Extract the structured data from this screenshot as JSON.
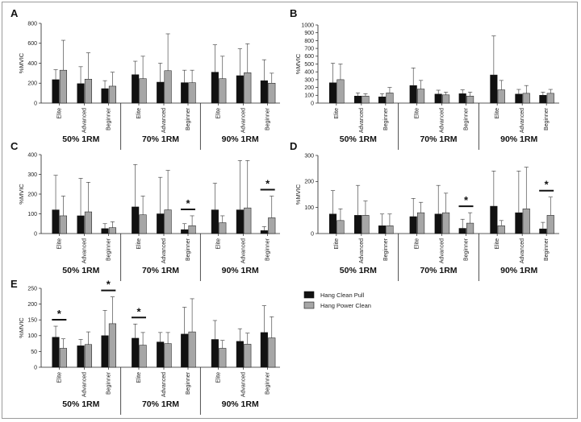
{
  "chart_data": [
    {
      "panel": "A",
      "type": "bar",
      "ylabel": "%MVIC",
      "ylim": [
        0,
        800
      ],
      "yticks": [
        0,
        200,
        400,
        600,
        800
      ],
      "groups": [
        "50% 1RM",
        "70% 1RM",
        "90% 1RM"
      ],
      "categories": [
        "Elite",
        "Advanced",
        "Beginner"
      ],
      "series": [
        {
          "name": "Hang Clean Pull",
          "values": [
            [
              235,
              195,
              145
            ],
            [
              285,
              210,
              205
            ],
            [
              310,
              275,
              225
            ]
          ],
          "errors": [
            [
              100,
              170,
              80
            ],
            [
              135,
              190,
              125
            ],
            [
              275,
              270,
              210
            ]
          ]
        },
        {
          "name": "Hang Power Clean",
          "values": [
            [
              330,
              240,
              170
            ],
            [
              245,
              325,
              205
            ],
            [
              245,
              305,
              200
            ]
          ],
          "errors": [
            [
              300,
              265,
              140
            ],
            [
              225,
              370,
              125
            ],
            [
              225,
              290,
              100
            ]
          ]
        }
      ],
      "significance": []
    },
    {
      "panel": "B",
      "type": "bar",
      "ylabel": "%MVIC",
      "ylim": [
        0,
        1000
      ],
      "yticks": [
        0,
        100,
        200,
        300,
        400,
        500,
        600,
        700,
        800,
        900,
        1000
      ],
      "groups": [
        "50% 1RM",
        "70% 1RM",
        "90% 1RM"
      ],
      "categories": [
        "Elite",
        "Advanced",
        "Beginner"
      ],
      "series": [
        {
          "name": "Hang Clean Pull",
          "values": [
            [
              260,
              90,
              80
            ],
            [
              225,
              115,
              120
            ],
            [
              360,
              115,
              100
            ]
          ],
          "errors": [
            [
              250,
              40,
              40
            ],
            [
              225,
              50,
              50
            ],
            [
              500,
              60,
              40
            ]
          ]
        },
        {
          "name": "Hang Power Clean",
          "values": [
            [
              300,
              90,
              130
            ],
            [
              180,
              105,
              90
            ],
            [
              170,
              125,
              125
            ]
          ],
          "errors": [
            [
              200,
              30,
              70
            ],
            [
              110,
              35,
              50
            ],
            [
              120,
              100,
              50
            ]
          ]
        }
      ],
      "significance": []
    },
    {
      "panel": "C",
      "type": "bar",
      "ylabel": "%MVIC",
      "ylim": [
        0,
        400
      ],
      "yticks": [
        0,
        100,
        200,
        300,
        400
      ],
      "groups": [
        "50% 1RM",
        "70% 1RM",
        "90% 1RM"
      ],
      "categories": [
        "Elite",
        "Advanced",
        "Beginner"
      ],
      "series": [
        {
          "name": "Hang Clean Pull",
          "values": [
            [
              120,
              90,
              25
            ],
            [
              135,
              100,
              20
            ],
            [
              120,
              120,
              15
            ]
          ],
          "errors": [
            [
              175,
              190,
              25
            ],
            [
              215,
              185,
              30
            ],
            [
              135,
              250,
              20
            ]
          ]
        },
        {
          "name": "Hang Power Clean",
          "values": [
            [
              90,
              110,
              30
            ],
            [
              95,
              120,
              40
            ],
            [
              55,
              130,
              80
            ]
          ],
          "errors": [
            [
              100,
              150,
              30
            ],
            [
              95,
              200,
              50
            ],
            [
              35,
              240,
              110
            ]
          ]
        }
      ],
      "significance": [
        {
          "group": 1,
          "category": 2,
          "label": "*"
        },
        {
          "group": 2,
          "category": 2,
          "label": "*"
        }
      ]
    },
    {
      "panel": "D",
      "type": "bar",
      "ylabel": "%MVIC",
      "ylim": [
        0,
        300
      ],
      "yticks": [
        0,
        100,
        200,
        300
      ],
      "groups": [
        "50% 1RM",
        "70% 1RM",
        "90% 1RM"
      ],
      "categories": [
        "Elite",
        "Advanced",
        "Beginner"
      ],
      "series": [
        {
          "name": "Hang Clean Pull",
          "values": [
            [
              75,
              70,
              30
            ],
            [
              65,
              75,
              20
            ],
            [
              105,
              80,
              18
            ]
          ],
          "errors": [
            [
              90,
              115,
              45
            ],
            [
              70,
              110,
              35
            ],
            [
              135,
              160,
              25
            ]
          ]
        },
        {
          "name": "Hang Power Clean",
          "values": [
            [
              50,
              70,
              30
            ],
            [
              80,
              80,
              40
            ],
            [
              30,
              95,
              70
            ]
          ],
          "errors": [
            [
              45,
              55,
              45
            ],
            [
              40,
              75,
              40
            ],
            [
              20,
              160,
              70
            ]
          ]
        }
      ],
      "significance": [
        {
          "group": 1,
          "category": 2,
          "label": "*"
        },
        {
          "group": 2,
          "category": 2,
          "label": "*"
        }
      ]
    },
    {
      "panel": "E",
      "type": "bar",
      "ylabel": "%MVIC",
      "ylim": [
        0,
        250
      ],
      "yticks": [
        0,
        50,
        100,
        150,
        200,
        250
      ],
      "groups": [
        "50% 1RM",
        "70% 1RM",
        "90% 1RM"
      ],
      "categories": [
        "Elite",
        "Advanced",
        "Beginner"
      ],
      "series": [
        {
          "name": "Hang Clean Pull",
          "values": [
            [
              95,
              68,
              100
            ],
            [
              92,
              80,
              105
            ],
            [
              88,
              82,
              110
            ]
          ],
          "errors": [
            [
              35,
              20,
              80
            ],
            [
              45,
              30,
              85
            ],
            [
              60,
              40,
              85
            ]
          ]
        },
        {
          "name": "Hang Power Clean",
          "values": [
            [
              60,
              72,
              138
            ],
            [
              70,
              75,
              112
            ],
            [
              60,
              73,
              93
            ]
          ],
          "errors": [
            [
              30,
              40,
              85
            ],
            [
              40,
              35,
              105
            ],
            [
              25,
              35,
              67
            ]
          ]
        }
      ],
      "significance": [
        {
          "group": 0,
          "category": 0,
          "label": "*"
        },
        {
          "group": 0,
          "category": 2,
          "label": "*"
        },
        {
          "group": 1,
          "category": 0,
          "label": "*"
        }
      ]
    }
  ],
  "legend": [
    {
      "label": "Hang Clean Pull",
      "color": "#111111"
    },
    {
      "label": "Hang Power Clean",
      "color": "#a6a6a6"
    }
  ],
  "colors": {
    "series0": "#111111",
    "series1": "#a6a6a6",
    "axis": "#222222"
  }
}
